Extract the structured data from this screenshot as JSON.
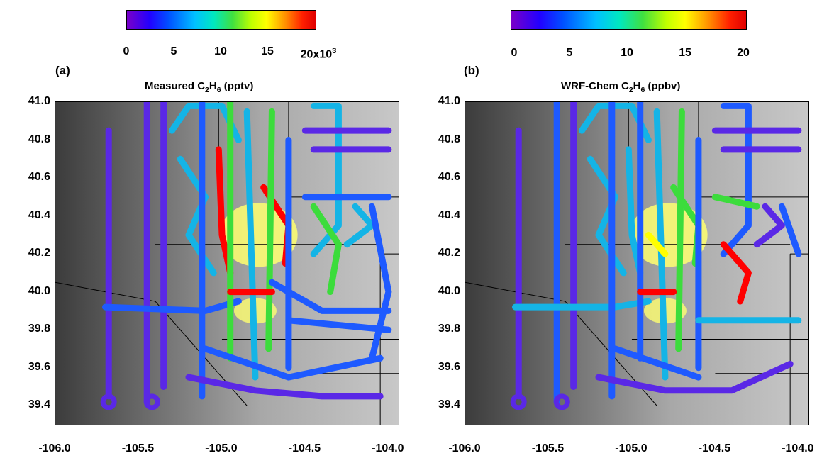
{
  "panels": [
    {
      "letter": "(a)",
      "title_prefix": "Measured C",
      "title_sub1": "2",
      "title_mid": "H",
      "title_sub2": "6",
      "title_suffix": "  (pptv)",
      "colorbar_ticks": [
        "0",
        "5",
        "10",
        "15"
      ],
      "colorbar_last_tick": "20x10",
      "colorbar_last_sup": "3"
    },
    {
      "letter": "(b)",
      "title_prefix": "WRF-Chem C",
      "title_sub1": "2",
      "title_mid": "H",
      "title_sub2": "6",
      "title_suffix": " (ppbv)",
      "colorbar_ticks": [
        "0",
        "5",
        "10",
        "15",
        "20"
      ]
    }
  ],
  "y_ticks": [
    "41.0",
    "40.8",
    "40.6",
    "40.4",
    "40.2",
    "40.0",
    "39.8",
    "39.6",
    "39.4"
  ],
  "x_ticks": [
    "-106.0",
    "-105.5",
    "-105.0",
    "-104.5",
    "-104.0"
  ],
  "colors": {
    "low": "#5a28e6",
    "mid_low": "#1e5aff",
    "cyan": "#14b4e6",
    "green": "#3cdc3c",
    "yellow": "#ffff00",
    "red": "#ff0000"
  },
  "map": {
    "lon_range": [
      -106.0,
      -103.94
    ],
    "lat_range": [
      39.3,
      41.0
    ]
  }
}
